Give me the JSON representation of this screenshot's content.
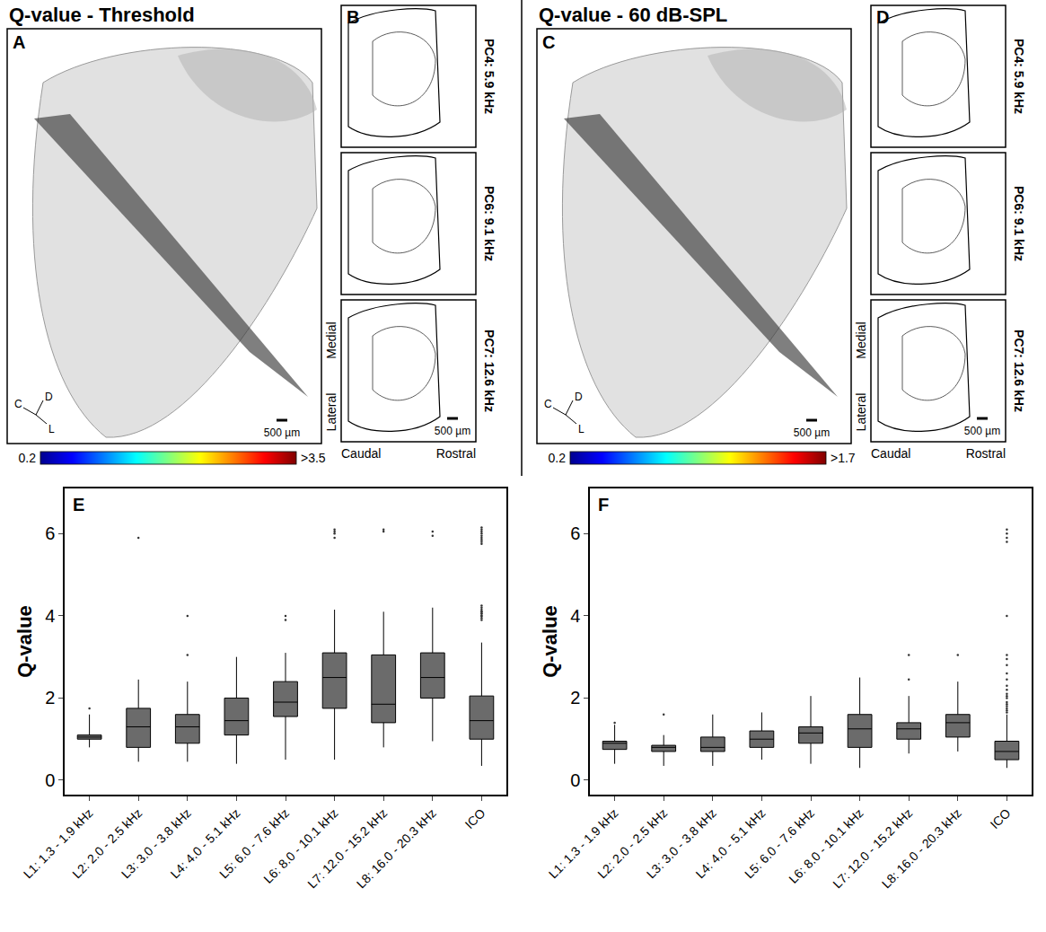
{
  "figure": {
    "titles": [
      "Q-value - Threshold",
      "Q-value - 60 dB-SPL"
    ],
    "render_panels": [
      {
        "label": "A",
        "colorbar": {
          "range": [
            0.2,
            3.5
          ],
          "ticks": [
            {
              "value": 0.2,
              "label": "0.2"
            },
            {
              "value": 3.5,
              "label": ">3.5"
            }
          ]
        },
        "orientation": [
          "C",
          "D",
          "L"
        ],
        "scale_bar": "500 µm"
      },
      {
        "label": "C",
        "colorbar": {
          "range": [
            0.2,
            1.7
          ],
          "ticks": [
            {
              "value": 0.2,
              "label": "0.2"
            },
            {
              "value": 1.7,
              "label": ">1.7"
            }
          ]
        },
        "orientation": [
          "C",
          "D",
          "L"
        ],
        "scale_bar": "500 µm"
      }
    ],
    "section_panels": [
      {
        "label": "B",
        "sections": [
          "PC4: 5.9 kHz",
          "PC6: 9.1 kHz",
          "PC7: 12.6 kHz"
        ],
        "medial": "Medial",
        "lateral": "Lateral",
        "caudal": "Caudal",
        "rostral": "Rostral",
        "scale_bar": "500 µm"
      },
      {
        "label": "D",
        "sections": [
          "PC4: 5.9 kHz",
          "PC6: 9.1 kHz",
          "PC7: 12.6 kHz"
        ],
        "medial": "Medial",
        "lateral": "Lateral",
        "caudal": "Caudal",
        "rostral": "Rostral",
        "scale_bar": "500 µm"
      }
    ]
  },
  "chart_data": [
    {
      "type": "box",
      "label": "E",
      "ylabel": "Q-value",
      "categories": [
        "L1: 1.3 - 1.9 kHz",
        "L2: 2.0 - 2.5 kHz",
        "L3: 3.0 - 3.8 kHz",
        "L4: 4.0 - 5.1 kHz",
        "L5: 6.0 - 7.6 kHz",
        "L6: 8.0 - 10.1 kHz",
        "L7: 12.0 - 15.2 kHz",
        "L8: 16.0 - 20.3 kHz",
        "ICO"
      ],
      "lower": [
        0.8,
        0.45,
        0.45,
        0.4,
        0.5,
        0.5,
        0.8,
        0.95,
        0.35
      ],
      "q1": [
        1.0,
        0.8,
        0.9,
        1.1,
        1.55,
        1.75,
        1.4,
        2.0,
        1.0
      ],
      "median": [
        1.05,
        1.3,
        1.3,
        1.45,
        1.9,
        2.5,
        1.85,
        2.5,
        1.45
      ],
      "q3": [
        1.1,
        1.75,
        1.6,
        2.0,
        2.4,
        3.1,
        3.05,
        3.1,
        2.05
      ],
      "upper": [
        1.6,
        2.45,
        2.4,
        3.0,
        3.1,
        4.15,
        4.1,
        4.2,
        3.35
      ],
      "outliers": [
        [
          1.75
        ],
        [
          5.9
        ],
        [
          3.05,
          4.0
        ],
        [],
        [
          3.9,
          4.0
        ],
        [
          5.9,
          6.0,
          6.05,
          6.1
        ],
        [
          6.05,
          6.1
        ],
        [
          5.95,
          6.05
        ],
        [
          3.9,
          3.95,
          4.0,
          4.0,
          4.05,
          4.05,
          4.1,
          4.1,
          4.15,
          4.2,
          4.25,
          5.75,
          5.8,
          5.85,
          5.9,
          5.95,
          6.0,
          6.05,
          6.1,
          6.15
        ]
      ],
      "color": "#6b6b6b",
      "ylim": [
        -0.35,
        7.1
      ],
      "yticks": [
        0,
        2,
        4,
        6
      ]
    },
    {
      "type": "box",
      "label": "F",
      "ylabel": "Q-value",
      "categories": [
        "L1: 1.3 - 1.9 kHz",
        "L2: 2.0 - 2.5 kHz",
        "L3: 3.0 - 3.8 kHz",
        "L4: 4.0 - 5.1 kHz",
        "L5: 6.0 - 7.6 kHz",
        "L6: 8.0 - 10.1 kHz",
        "L7: 12.0 - 15.2 kHz",
        "L8: 16.0 - 20.3 kHz",
        "ICO"
      ],
      "lower": [
        0.4,
        0.35,
        0.35,
        0.5,
        0.4,
        0.3,
        0.65,
        0.7,
        0.3
      ],
      "q1": [
        0.75,
        0.7,
        0.7,
        0.8,
        0.9,
        0.8,
        1.0,
        1.05,
        0.5
      ],
      "median": [
        0.9,
        0.8,
        0.8,
        1.0,
        1.15,
        1.25,
        1.25,
        1.4,
        0.7
      ],
      "q3": [
        0.95,
        0.85,
        1.05,
        1.2,
        1.3,
        1.6,
        1.4,
        1.6,
        0.95
      ],
      "upper": [
        1.35,
        1.1,
        1.6,
        1.65,
        2.05,
        2.5,
        2.05,
        2.4,
        1.6
      ],
      "outliers": [
        [
          1.4
        ],
        [
          1.6
        ],
        [],
        [],
        [],
        [],
        [
          2.45,
          3.05
        ],
        [
          3.05
        ],
        [
          1.65,
          1.7,
          1.75,
          1.8,
          1.85,
          1.9,
          2.0,
          2.05,
          2.1,
          2.2,
          2.3,
          2.45,
          2.6,
          2.8,
          2.95,
          3.05,
          4.0,
          5.8,
          5.9,
          6.0,
          6.1
        ]
      ],
      "color": "#6b6b6b",
      "ylim": [
        -0.35,
        7.1
      ],
      "yticks": [
        0,
        2,
        4,
        6
      ]
    }
  ]
}
